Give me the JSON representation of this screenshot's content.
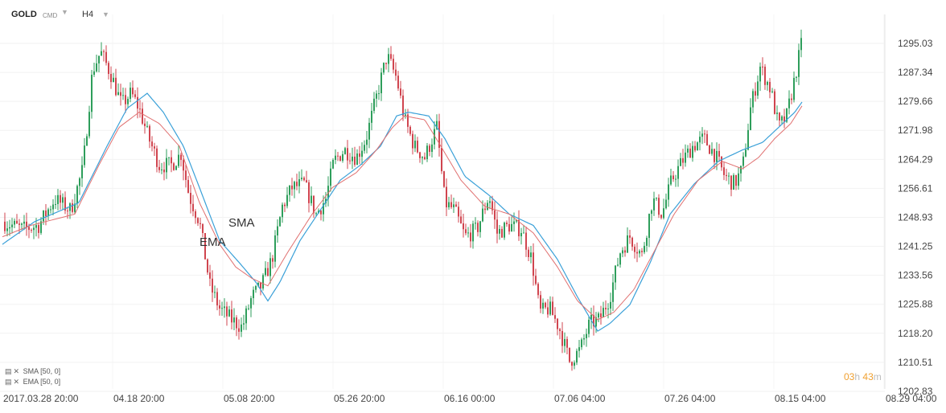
{
  "toolbar": {
    "symbol": "GOLD",
    "symbol_type": "CMD",
    "timeframe": "H4"
  },
  "legend": [
    {
      "label": "SMA",
      "params": "[50, 0]"
    },
    {
      "label": "EMA",
      "params": "[50, 0]"
    }
  ],
  "countdown": {
    "hours": "03",
    "hours_unit": "h",
    "minutes": "43",
    "minutes_unit": "m"
  },
  "colors": {
    "bull": "#2e9e5b",
    "bear": "#d0454f",
    "sma": "#3aa0d8",
    "ema": "#e07070"
  },
  "chart_data": {
    "type": "candlestick",
    "ylim": [
      1202.83,
      1300.5
    ],
    "y_ticks": [
      "1295.03",
      "1287.34",
      "1279.66",
      "1271.98",
      "1264.29",
      "1256.61",
      "1248.93",
      "1241.25",
      "1233.56",
      "1225.88",
      "1218.20",
      "1210.51",
      "1202.83"
    ],
    "x_ticks": [
      "2017.03.28  20:00",
      "04.18  20:00",
      "05.08  20:00",
      "05.26  20:00",
      "06.16  00:00",
      "07.06  04:00",
      "07.26  04:00",
      "08.15  04:00",
      "08.29  04:00"
    ],
    "annotations": [
      {
        "text": "SMA",
        "x": "05.08",
        "y": 1251.0
      },
      {
        "text": "EMA",
        "x": "04.28",
        "y": 1245.0
      }
    ],
    "price_path": [
      [
        0,
        1248
      ],
      [
        25,
        1246
      ],
      [
        45,
        1247
      ],
      [
        65,
        1254
      ],
      [
        85,
        1251
      ],
      [
        100,
        1262
      ],
      [
        112,
        1288
      ],
      [
        122,
        1293
      ],
      [
        135,
        1287
      ],
      [
        148,
        1279
      ],
      [
        160,
        1282
      ],
      [
        170,
        1278
      ],
      [
        182,
        1270
      ],
      [
        195,
        1263
      ],
      [
        210,
        1263
      ],
      [
        222,
        1266
      ],
      [
        232,
        1255
      ],
      [
        245,
        1248
      ],
      [
        258,
        1231
      ],
      [
        270,
        1225
      ],
      [
        285,
        1222
      ],
      [
        298,
        1220
      ],
      [
        310,
        1228
      ],
      [
        322,
        1231
      ],
      [
        335,
        1238
      ],
      [
        348,
        1252
      ],
      [
        360,
        1257
      ],
      [
        375,
        1258
      ],
      [
        390,
        1250
      ],
      [
        402,
        1254
      ],
      [
        412,
        1264
      ],
      [
        425,
        1267
      ],
      [
        440,
        1265
      ],
      [
        452,
        1270
      ],
      [
        465,
        1281
      ],
      [
        478,
        1292
      ],
      [
        490,
        1286
      ],
      [
        500,
        1275
      ],
      [
        512,
        1268
      ],
      [
        525,
        1265
      ],
      [
        540,
        1273
      ],
      [
        550,
        1253
      ],
      [
        562,
        1251
      ],
      [
        575,
        1244
      ],
      [
        590,
        1246
      ],
      [
        605,
        1255
      ],
      [
        615,
        1245
      ],
      [
        630,
        1247
      ],
      [
        645,
        1246
      ],
      [
        658,
        1238
      ],
      [
        668,
        1224
      ],
      [
        680,
        1225
      ],
      [
        692,
        1220
      ],
      [
        705,
        1211
      ],
      [
        718,
        1214
      ],
      [
        730,
        1221
      ],
      [
        742,
        1222
      ],
      [
        755,
        1228
      ],
      [
        768,
        1240
      ],
      [
        780,
        1244
      ],
      [
        795,
        1239
      ],
      [
        808,
        1254
      ],
      [
        820,
        1250
      ],
      [
        832,
        1259
      ],
      [
        845,
        1264
      ],
      [
        858,
        1268
      ],
      [
        872,
        1270
      ],
      [
        885,
        1266
      ],
      [
        898,
        1260
      ],
      [
        910,
        1258
      ],
      [
        920,
        1262
      ],
      [
        930,
        1278
      ],
      [
        942,
        1289
      ],
      [
        955,
        1283
      ],
      [
        965,
        1273
      ],
      [
        975,
        1276
      ],
      [
        985,
        1286
      ],
      [
        995,
        1297
      ]
    ],
    "sma_path": [
      [
        0,
        1242
      ],
      [
        40,
        1248
      ],
      [
        95,
        1253
      ],
      [
        130,
        1268
      ],
      [
        155,
        1278
      ],
      [
        180,
        1282
      ],
      [
        200,
        1277
      ],
      [
        225,
        1268
      ],
      [
        245,
        1257
      ],
      [
        270,
        1243
      ],
      [
        295,
        1237
      ],
      [
        315,
        1232
      ],
      [
        330,
        1227
      ],
      [
        345,
        1232
      ],
      [
        370,
        1243
      ],
      [
        395,
        1251
      ],
      [
        420,
        1259
      ],
      [
        445,
        1263
      ],
      [
        470,
        1268
      ],
      [
        490,
        1276
      ],
      [
        505,
        1277
      ],
      [
        530,
        1276
      ],
      [
        550,
        1270
      ],
      [
        575,
        1260
      ],
      [
        605,
        1255
      ],
      [
        630,
        1250
      ],
      [
        660,
        1247
      ],
      [
        690,
        1238
      ],
      [
        715,
        1228
      ],
      [
        740,
        1219
      ],
      [
        755,
        1221
      ],
      [
        780,
        1226
      ],
      [
        805,
        1237
      ],
      [
        830,
        1250
      ],
      [
        860,
        1258
      ],
      [
        890,
        1264
      ],
      [
        920,
        1267
      ],
      [
        945,
        1269
      ],
      [
        965,
        1273
      ],
      [
        985,
        1277
      ],
      [
        995,
        1280
      ]
    ],
    "ema_path": [
      [
        0,
        1244
      ],
      [
        35,
        1247
      ],
      [
        90,
        1250
      ],
      [
        120,
        1263
      ],
      [
        145,
        1273
      ],
      [
        170,
        1277
      ],
      [
        195,
        1274
      ],
      [
        220,
        1268
      ],
      [
        245,
        1253
      ],
      [
        270,
        1242
      ],
      [
        290,
        1236
      ],
      [
        310,
        1233
      ],
      [
        330,
        1231
      ],
      [
        355,
        1240
      ],
      [
        385,
        1250
      ],
      [
        410,
        1257
      ],
      [
        440,
        1261
      ],
      [
        465,
        1267
      ],
      [
        485,
        1273
      ],
      [
        500,
        1276
      ],
      [
        525,
        1275
      ],
      [
        545,
        1268
      ],
      [
        570,
        1259
      ],
      [
        600,
        1252
      ],
      [
        630,
        1250
      ],
      [
        660,
        1245
      ],
      [
        690,
        1236
      ],
      [
        715,
        1227
      ],
      [
        740,
        1222
      ],
      [
        760,
        1224
      ],
      [
        785,
        1230
      ],
      [
        810,
        1240
      ],
      [
        835,
        1250
      ],
      [
        865,
        1259
      ],
      [
        895,
        1264
      ],
      [
        920,
        1262
      ],
      [
        940,
        1265
      ],
      [
        960,
        1270
      ],
      [
        980,
        1274
      ],
      [
        995,
        1279
      ]
    ]
  }
}
